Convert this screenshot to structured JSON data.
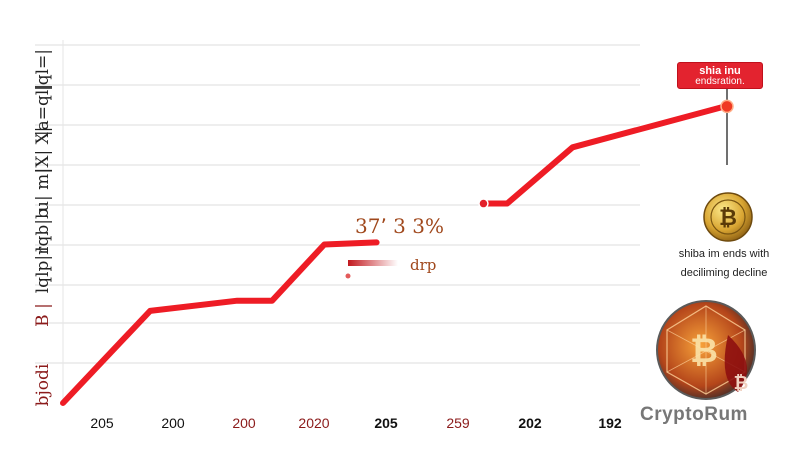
{
  "chart_data": {
    "type": "line",
    "x_ticks": [
      "205",
      "200",
      "200",
      "2020",
      "205",
      "259",
      "202",
      "192"
    ],
    "series": [
      {
        "segments": [
          [
            [
              0,
              0
            ],
            [
              1,
              9
            ],
            [
              2,
              10
            ],
            [
              2.4,
              10
            ],
            [
              3,
              15.5
            ],
            [
              3.6,
              15.7
            ]
          ],
          [
            [
              4.85,
              19.5
            ],
            [
              5.1,
              19.5
            ],
            [
              5.85,
              25
            ],
            [
              7.6,
              29
            ]
          ]
        ]
      }
    ],
    "ylim": [
      0,
      35
    ],
    "grid": true,
    "annotations": {
      "drop_pct": "37٬ 3 3%",
      "drop_word": "drp",
      "callout_line1": "shia inu",
      "callout_line2": "endsration.",
      "side_text_line1": "shiba im ends with",
      "side_text_line2": "deciliming decline"
    },
    "colors": {
      "line": "#ee1c25",
      "grid": "#dddddd",
      "callout": "#e3232f",
      "label_accent": "#8b1a1a"
    }
  },
  "y_axis_labels": [
    "|ql=|",
    "|a=ql|",
    "|X| X|",
    "u| m|",
    "lqb|b",
    "lqlp|r",
    "B  |",
    "bjodi"
  ],
  "watermark": "CryptoRum",
  "icons": [
    "bitcoin-coin-icon",
    "bitcoin-polygon-emblem-icon"
  ]
}
